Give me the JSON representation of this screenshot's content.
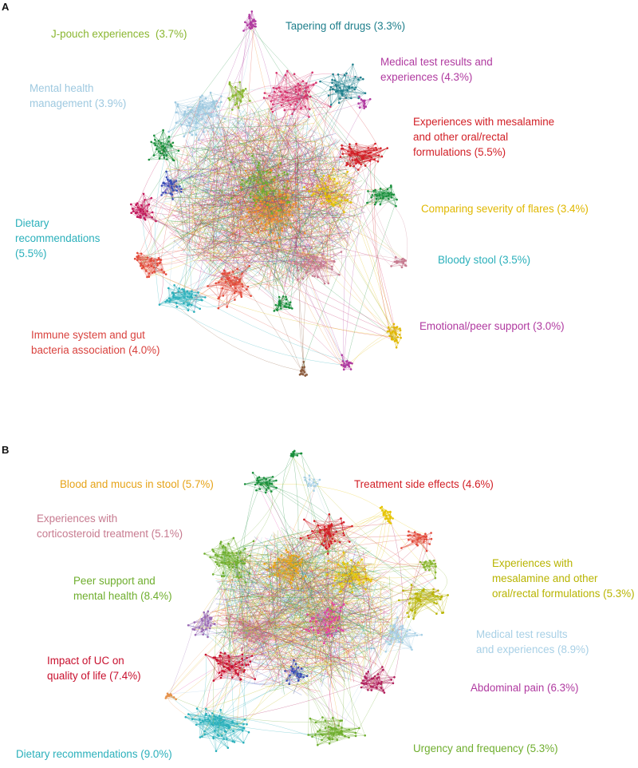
{
  "panels": [
    {
      "letter": "A",
      "clusters": [
        {
          "label": "J-pouch experiences  (3.7%)",
          "color": "#8ab630"
        },
        {
          "label": "Tapering off drugs (3.3%)",
          "color": "#1f7f8c"
        },
        {
          "label": "Medical test results and\nexperiences (4.3%)",
          "color": "#b03aa0"
        },
        {
          "label": "Mental health\nmanagement (3.9%)",
          "color": "#9ec9e0"
        },
        {
          "label": "Experiences with mesalamine\nand other oral/rectal\nformulations (5.5%)",
          "color": "#d21f26"
        },
        {
          "label": "Comparing severity of flares (3.4%)",
          "color": "#e0b800"
        },
        {
          "label": "Dietary\nrecommendations\n(5.5%)",
          "color": "#2bb0bb"
        },
        {
          "label": "Bloody stool (3.5%)",
          "color": "#2bb0bb"
        },
        {
          "label": "Emotional/peer support (3.0%)",
          "color": "#b03aa0"
        },
        {
          "label": "Immune system and gut\nbacteria association (4.0%)",
          "color": "#d9423e"
        }
      ]
    },
    {
      "letter": "B",
      "clusters": [
        {
          "label": "Blood and mucus in stool (5.7%)",
          "color": "#e6a317"
        },
        {
          "label": "Treatment side effects (4.6%)",
          "color": "#d21f26"
        },
        {
          "label": "Experiences with\ncorticosteroid treatment (5.1%)",
          "color": "#c77b90"
        },
        {
          "label": "Experiences with\nmesalamine and other\noral/rectal formulations (5.3%)",
          "color": "#b8b400"
        },
        {
          "label": "Peer support and\nmental health (8.4%)",
          "color": "#6fae2e"
        },
        {
          "label": "Medical test results\nand experiences (8.9%)",
          "color": "#a8d0e6"
        },
        {
          "label": "Impact of UC on\nquality of life (7.4%)",
          "color": "#c8102e"
        },
        {
          "label": "Abdominal pain (6.3%)",
          "color": "#b03aa0"
        },
        {
          "label": "Dietary recommendations (9.0%)",
          "color": "#2bb0bb"
        },
        {
          "label": "Urgency and frequency (5.3%)",
          "color": "#6fae2e"
        }
      ]
    }
  ]
}
